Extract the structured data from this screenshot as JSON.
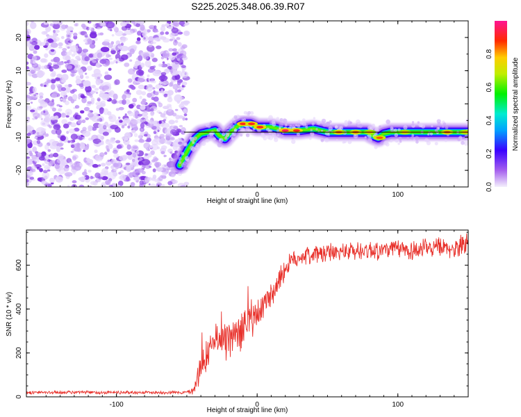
{
  "title": "S225.2025.348.06.39.R07",
  "colors": {
    "snr_line": "#e8302a",
    "dot_colors": [
      "#e4d4fb",
      "#c9a6f6",
      "#9f63ee",
      "#7a2be0"
    ],
    "frame": "#000000"
  },
  "chart_data": [
    {
      "type": "heatmap",
      "title": "S225.2025.348.06.39.R07",
      "xlabel": "Height of straight line (km)",
      "ylabel": "Frequency (Hz)",
      "xlim": [
        -164,
        150
      ],
      "ylim": [
        -25,
        25
      ],
      "xticks": [
        -100,
        0,
        100
      ],
      "yticks": [
        -20,
        -10,
        0,
        10,
        20
      ],
      "colorbar": {
        "label": "Normalized spectral amplitude",
        "range": [
          0,
          1
        ],
        "ticks": [
          "0.0",
          "0.2",
          "0.4",
          "0.6",
          "0.8"
        ],
        "tick_values": [
          0,
          0.2,
          0.4,
          0.6,
          0.8
        ]
      },
      "noise_region_x": [
        -164,
        -52
      ],
      "reference_line": {
        "y": -8.5,
        "x": [
          -52,
          150
        ]
      },
      "ridge": [
        {
          "x": -55,
          "y": -18.5
        },
        {
          "x": -52,
          "y": -16
        },
        {
          "x": -48,
          "y": -13
        },
        {
          "x": -44,
          "y": -10.5
        },
        {
          "x": -40,
          "y": -9
        },
        {
          "x": -35,
          "y": -8.5
        },
        {
          "x": -30,
          "y": -8
        },
        {
          "x": -27,
          "y": -9.5
        },
        {
          "x": -23,
          "y": -10.5
        },
        {
          "x": -20,
          "y": -9
        },
        {
          "x": -15,
          "y": -7
        },
        {
          "x": -10,
          "y": -6
        },
        {
          "x": -5,
          "y": -6
        },
        {
          "x": 0,
          "y": -7
        },
        {
          "x": 10,
          "y": -7
        },
        {
          "x": 20,
          "y": -8
        },
        {
          "x": 30,
          "y": -8
        },
        {
          "x": 40,
          "y": -7.5
        },
        {
          "x": 50,
          "y": -8.5
        },
        {
          "x": 60,
          "y": -8.5
        },
        {
          "x": 70,
          "y": -8.5
        },
        {
          "x": 78,
          "y": -8.5
        },
        {
          "x": 82,
          "y": -9.5
        },
        {
          "x": 86,
          "y": -10.2
        },
        {
          "x": 90,
          "y": -9
        },
        {
          "x": 95,
          "y": -8.5
        },
        {
          "x": 110,
          "y": -8.5
        },
        {
          "x": 130,
          "y": -8.5
        },
        {
          "x": 150,
          "y": -8.5
        }
      ],
      "hotspots": [
        {
          "x": -10,
          "y": -6,
          "amp": 0.9
        },
        {
          "x": -4,
          "y": -6,
          "amp": 0.9
        },
        {
          "x": 2,
          "y": -7,
          "amp": 0.9
        },
        {
          "x": 20,
          "y": -8,
          "amp": 0.95
        },
        {
          "x": 28,
          "y": -8,
          "amp": 0.9
        },
        {
          "x": 58,
          "y": -8.5,
          "amp": 0.85
        },
        {
          "x": 70,
          "y": -8.5,
          "amp": 0.85
        },
        {
          "x": 80,
          "y": -8.5,
          "amp": 0.8
        },
        {
          "x": 87,
          "y": -10.2,
          "amp": 0.85
        },
        {
          "x": 105,
          "y": -8.5,
          "amp": 0.8
        },
        {
          "x": 135,
          "y": -8.5,
          "amp": 0.85
        },
        {
          "x": 148,
          "y": -8.5,
          "amp": 0.8
        }
      ]
    },
    {
      "type": "line",
      "xlabel": "Height of straight line (km)",
      "ylabel": "SNR (10 * v/v)",
      "xlim": [
        -164,
        150
      ],
      "ylim": [
        0,
        760
      ],
      "xticks": [
        -100,
        0,
        100
      ],
      "yticks": [
        0,
        200,
        400,
        600
      ],
      "series": [
        {
          "trend": [
            {
              "x": -164,
              "y": 20
            },
            {
              "x": -50,
              "y": 20
            },
            {
              "x": -45,
              "y": 30
            },
            {
              "x": -40,
              "y": 150
            },
            {
              "x": -35,
              "y": 200
            },
            {
              "x": -30,
              "y": 240
            },
            {
              "x": -25,
              "y": 270
            },
            {
              "x": -20,
              "y": 250
            },
            {
              "x": -15,
              "y": 290
            },
            {
              "x": -10,
              "y": 320
            },
            {
              "x": -5,
              "y": 340
            },
            {
              "x": 0,
              "y": 370
            },
            {
              "x": 5,
              "y": 420
            },
            {
              "x": 10,
              "y": 470
            },
            {
              "x": 15,
              "y": 530
            },
            {
              "x": 20,
              "y": 580
            },
            {
              "x": 25,
              "y": 620
            },
            {
              "x": 30,
              "y": 640
            },
            {
              "x": 40,
              "y": 650
            },
            {
              "x": 50,
              "y": 655
            },
            {
              "x": 60,
              "y": 660
            },
            {
              "x": 70,
              "y": 665
            },
            {
              "x": 80,
              "y": 670
            },
            {
              "x": 90,
              "y": 670
            },
            {
              "x": 100,
              "y": 672
            },
            {
              "x": 110,
              "y": 670
            },
            {
              "x": 120,
              "y": 675
            },
            {
              "x": 130,
              "y": 680
            },
            {
              "x": 140,
              "y": 670
            },
            {
              "x": 145,
              "y": 690
            },
            {
              "x": 150,
              "y": 720
            }
          ],
          "noise_amplitude": [
            {
              "x": -164,
              "y": 6
            },
            {
              "x": -50,
              "y": 6
            },
            {
              "x": -45,
              "y": 20
            },
            {
              "x": -40,
              "y": 70
            },
            {
              "x": -10,
              "y": 80
            },
            {
              "x": 10,
              "y": 50
            },
            {
              "x": 30,
              "y": 35
            },
            {
              "x": 150,
              "y": 40
            }
          ]
        }
      ]
    }
  ]
}
